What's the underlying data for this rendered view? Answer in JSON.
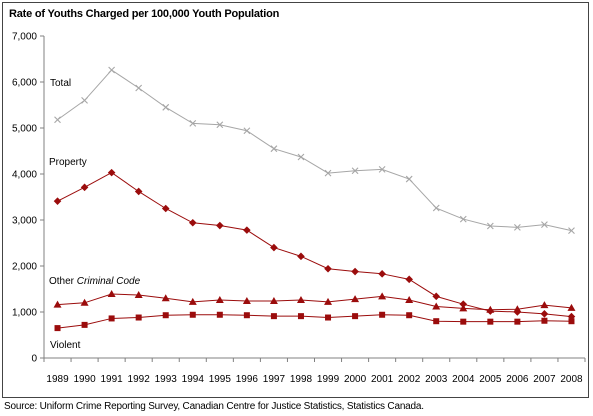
{
  "chart_data": {
    "type": "line",
    "title": "Rate of Youths Charged per 100,000 Youth Population",
    "xlabel": "",
    "ylabel": "",
    "x": [
      "1989",
      "1990",
      "1991",
      "1992",
      "1993",
      "1994",
      "1995",
      "1996",
      "1997",
      "1998",
      "1999",
      "2000",
      "2001",
      "2002",
      "2003",
      "2004",
      "2005",
      "2006",
      "2007",
      "2008"
    ],
    "ylim": [
      0,
      7000
    ],
    "yticks": [
      0,
      1000,
      2000,
      3000,
      4000,
      5000,
      6000,
      7000
    ],
    "ytick_labels": [
      "0",
      "1,000",
      "2,000",
      "3,000",
      "4,000",
      "5,000",
      "6,000",
      "7,000"
    ],
    "grid": false,
    "series": [
      {
        "name": "Total",
        "color": "#a6a6a6",
        "marker": "x",
        "values": [
          5180,
          5600,
          6260,
          5870,
          5450,
          5100,
          5070,
          4940,
          4550,
          4370,
          4020,
          4070,
          4100,
          3890,
          3260,
          3020,
          2870,
          2840,
          2900,
          2770
        ]
      },
      {
        "name": "Property",
        "color": "#9b0c0c",
        "marker": "diamond",
        "values": [
          3410,
          3710,
          4030,
          3620,
          3250,
          2940,
          2880,
          2780,
          2400,
          2210,
          1940,
          1880,
          1830,
          1710,
          1340,
          1170,
          1020,
          1000,
          960,
          900
        ]
      },
      {
        "name": "Other Criminal Code",
        "name_parts": [
          "Other ",
          "Criminal Code"
        ],
        "color": "#9b0c0c",
        "marker": "triangle",
        "values": [
          1160,
          1200,
          1390,
          1370,
          1300,
          1220,
          1260,
          1240,
          1240,
          1260,
          1220,
          1280,
          1340,
          1260,
          1120,
          1080,
          1050,
          1060,
          1150,
          1090
        ]
      },
      {
        "name": "Violent",
        "color": "#9b0c0c",
        "marker": "square",
        "values": [
          650,
          720,
          860,
          880,
          930,
          940,
          940,
          930,
          910,
          910,
          880,
          910,
          940,
          930,
          800,
          790,
          790,
          790,
          810,
          800
        ]
      }
    ]
  },
  "source": "Source:  Uniform Crime Reporting Survey, Canadian Centre for Justice Statistics, Statistics Canada."
}
